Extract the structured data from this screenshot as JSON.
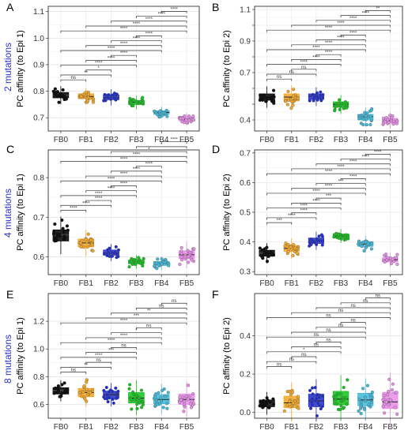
{
  "groups": [
    "FB0",
    "FB1",
    "FB2",
    "FB3",
    "FB4",
    "FB5"
  ],
  "colors": {
    "FB0": "#000000",
    "FB1": "#f5a623",
    "FB2": "#1f2bcc",
    "FB3": "#12c21a",
    "FB4": "#3fb8d8",
    "FB5": "#e88ce8",
    "row_label": "#2a36c8"
  },
  "row_labels": [
    "2 mutations",
    "4 mutations",
    "8 mutations"
  ],
  "chart_data": [
    {
      "type": "box",
      "panel_letter": "A",
      "ylabel": "PC affinity (to Epi 1)",
      "ylim": [
        0.65,
        1.12
      ],
      "yticks": [
        0.7,
        0.8,
        0.9,
        1.0,
        1.1
      ],
      "yticklabels": [
        "0.7",
        "0.8",
        "0.9",
        "1.0",
        "1.1"
      ],
      "categories": [
        "FB0",
        "FB1",
        "FB2",
        "FB3",
        "FB4",
        "FB5"
      ],
      "boxes": [
        {
          "group": "FB0",
          "q1": 0.775,
          "median": 0.785,
          "q3": 0.795
        },
        {
          "group": "FB1",
          "q1": 0.772,
          "median": 0.78,
          "q3": 0.79
        },
        {
          "group": "FB2",
          "q1": 0.768,
          "median": 0.776,
          "q3": 0.786
        },
        {
          "group": "FB3",
          "q1": 0.75,
          "median": 0.758,
          "q3": 0.765
        },
        {
          "group": "FB4",
          "q1": 0.713,
          "median": 0.72,
          "q3": 0.726
        },
        {
          "group": "FB5",
          "q1": 0.688,
          "median": 0.695,
          "q3": 0.702
        }
      ],
      "comparisons": [
        {
          "pair": [
            "FB0",
            "FB1"
          ],
          "label": "ns"
        },
        {
          "pair": [
            "FB0",
            "FB2"
          ],
          "label": "**"
        },
        {
          "pair": [
            "FB1",
            "FB2"
          ],
          "label": "*"
        },
        {
          "pair": [
            "FB0",
            "FB3"
          ],
          "label": "****"
        },
        {
          "pair": [
            "FB1",
            "FB3"
          ],
          "label": "****"
        },
        {
          "pair": [
            "FB2",
            "FB3"
          ],
          "label": "****"
        },
        {
          "pair": [
            "FB0",
            "FB4"
          ],
          "label": "****"
        },
        {
          "pair": [
            "FB1",
            "FB4"
          ],
          "label": "****"
        },
        {
          "pair": [
            "FB2",
            "FB4"
          ],
          "label": "****"
        },
        {
          "pair": [
            "FB3",
            "FB4"
          ],
          "label": "****"
        },
        {
          "pair": [
            "FB0",
            "FB5"
          ],
          "label": "****"
        },
        {
          "pair": [
            "FB1",
            "FB5"
          ],
          "label": "****"
        },
        {
          "pair": [
            "FB2",
            "FB5"
          ],
          "label": "****"
        },
        {
          "pair": [
            "FB3",
            "FB5"
          ],
          "label": "****"
        },
        {
          "pair": [
            "FB4",
            "FB5"
          ],
          "label": "****"
        }
      ]
    },
    {
      "type": "box",
      "panel_letter": "B",
      "ylabel": "PC affinity (to Epi 2)",
      "ylim": [
        0.33,
        1.12
      ],
      "yticks": [
        0.4,
        0.5,
        0.6,
        0.7,
        0.8,
        0.9,
        1.0,
        1.1
      ],
      "yticklabels": [
        "0.4",
        "",
        "",
        "0.7",
        "",
        "0.9",
        "",
        "1.1"
      ],
      "categories": [
        "FB0",
        "FB1",
        "FB2",
        "FB3",
        "FB4",
        "FB5"
      ],
      "boxes": [
        {
          "group": "FB0",
          "q1": 0.525,
          "median": 0.545,
          "q3": 0.565
        },
        {
          "group": "FB1",
          "q1": 0.52,
          "median": 0.545,
          "q3": 0.565
        },
        {
          "group": "FB2",
          "q1": 0.53,
          "median": 0.55,
          "q3": 0.565
        },
        {
          "group": "FB3",
          "q1": 0.48,
          "median": 0.5,
          "q3": 0.515
        },
        {
          "group": "FB4",
          "q1": 0.4,
          "median": 0.42,
          "q3": 0.435
        },
        {
          "group": "FB5",
          "q1": 0.38,
          "median": 0.395,
          "q3": 0.41
        }
      ],
      "comparisons": [
        {
          "pair": [
            "FB0",
            "FB1"
          ],
          "label": "ns"
        },
        {
          "pair": [
            "FB0",
            "FB2"
          ],
          "label": "ns"
        },
        {
          "pair": [
            "FB1",
            "FB2"
          ],
          "label": "ns"
        },
        {
          "pair": [
            "FB0",
            "FB3"
          ],
          "label": "****"
        },
        {
          "pair": [
            "FB1",
            "FB3"
          ],
          "label": "****"
        },
        {
          "pair": [
            "FB2",
            "FB3"
          ],
          "label": "****"
        },
        {
          "pair": [
            "FB0",
            "FB4"
          ],
          "label": "****"
        },
        {
          "pair": [
            "FB1",
            "FB4"
          ],
          "label": "****"
        },
        {
          "pair": [
            "FB2",
            "FB4"
          ],
          "label": "****"
        },
        {
          "pair": [
            "FB3",
            "FB4"
          ],
          "label": "****"
        },
        {
          "pair": [
            "FB0",
            "FB5"
          ],
          "label": "****"
        },
        {
          "pair": [
            "FB1",
            "FB5"
          ],
          "label": "****"
        },
        {
          "pair": [
            "FB2",
            "FB5"
          ],
          "label": "****"
        },
        {
          "pair": [
            "FB3",
            "FB5"
          ],
          "label": "****"
        },
        {
          "pair": [
            "FB4",
            "FB5"
          ],
          "label": "**"
        }
      ]
    },
    {
      "type": "box",
      "panel_letter": "C",
      "ylabel": "PC affinity (to Epi 1)",
      "ylim": [
        0.555,
        0.87
      ],
      "yticks": [
        0.6,
        0.7,
        0.8
      ],
      "yticklabels": [
        "0.6",
        "0.7",
        "0.8"
      ],
      "categories": [
        "FB0",
        "FB1",
        "FB2",
        "FB3",
        "FB4",
        "FB5"
      ],
      "boxes": [
        {
          "group": "FB0",
          "q1": 0.64,
          "median": 0.655,
          "q3": 0.668
        },
        {
          "group": "FB1",
          "q1": 0.625,
          "median": 0.635,
          "q3": 0.645
        },
        {
          "group": "FB2",
          "q1": 0.604,
          "median": 0.61,
          "q3": 0.617
        },
        {
          "group": "FB3",
          "q1": 0.582,
          "median": 0.587,
          "q3": 0.592
        },
        {
          "group": "FB4",
          "q1": 0.578,
          "median": 0.583,
          "q3": 0.588
        },
        {
          "group": "FB5",
          "q1": 0.595,
          "median": 0.605,
          "q3": 0.615
        }
      ],
      "comparisons": [
        {
          "pair": [
            "FB0",
            "FB1"
          ],
          "label": "****"
        },
        {
          "pair": [
            "FB0",
            "FB2"
          ],
          "label": "****"
        },
        {
          "pair": [
            "FB1",
            "FB2"
          ],
          "label": "****"
        },
        {
          "pair": [
            "FB0",
            "FB3"
          ],
          "label": "****"
        },
        {
          "pair": [
            "FB1",
            "FB3"
          ],
          "label": "****"
        },
        {
          "pair": [
            "FB2",
            "FB3"
          ],
          "label": "****"
        },
        {
          "pair": [
            "FB0",
            "FB4"
          ],
          "label": "****"
        },
        {
          "pair": [
            "FB1",
            "FB4"
          ],
          "label": "****"
        },
        {
          "pair": [
            "FB2",
            "FB4"
          ],
          "label": "****"
        },
        {
          "pair": [
            "FB3",
            "FB4"
          ],
          "label": "****"
        },
        {
          "pair": [
            "FB0",
            "FB5"
          ],
          "label": "****"
        },
        {
          "pair": [
            "FB1",
            "FB5"
          ],
          "label": "****"
        },
        {
          "pair": [
            "FB2",
            "FB5"
          ],
          "label": "*"
        },
        {
          "pair": [
            "FB3",
            "FB5"
          ],
          "label": "*"
        },
        {
          "pair": [
            "FB4",
            "FB5"
          ],
          "label": "****"
        }
      ]
    },
    {
      "type": "box",
      "panel_letter": "D",
      "ylabel": "PC affinity (to Epi 2)",
      "ylim": [
        0.29,
        0.71
      ],
      "yticks": [
        0.3,
        0.4,
        0.5,
        0.6,
        0.7
      ],
      "yticklabels": [
        "0.3",
        "0.4",
        "0.5",
        "0.6",
        "0.7"
      ],
      "categories": [
        "FB0",
        "FB1",
        "FB2",
        "FB3",
        "FB4",
        "FB5"
      ],
      "boxes": [
        {
          "group": "FB0",
          "q1": 0.352,
          "median": 0.362,
          "q3": 0.372
        },
        {
          "group": "FB1",
          "q1": 0.368,
          "median": 0.378,
          "q3": 0.388
        },
        {
          "group": "FB2",
          "q1": 0.395,
          "median": 0.404,
          "q3": 0.413
        },
        {
          "group": "FB3",
          "q1": 0.413,
          "median": 0.42,
          "q3": 0.427
        },
        {
          "group": "FB4",
          "q1": 0.385,
          "median": 0.393,
          "q3": 0.401
        },
        {
          "group": "FB5",
          "q1": 0.333,
          "median": 0.34,
          "q3": 0.347
        }
      ],
      "comparisons": [
        {
          "pair": [
            "FB0",
            "FB1"
          ],
          "label": "***"
        },
        {
          "pair": [
            "FB0",
            "FB2"
          ],
          "label": "****"
        },
        {
          "pair": [
            "FB1",
            "FB2"
          ],
          "label": "****"
        },
        {
          "pair": [
            "FB0",
            "FB3"
          ],
          "label": "****"
        },
        {
          "pair": [
            "FB1",
            "FB3"
          ],
          "label": "****"
        },
        {
          "pair": [
            "FB2",
            "FB3"
          ],
          "label": "***"
        },
        {
          "pair": [
            "FB0",
            "FB4"
          ],
          "label": "****"
        },
        {
          "pair": [
            "FB1",
            "FB4"
          ],
          "label": "****"
        },
        {
          "pair": [
            "FB2",
            "FB4"
          ],
          "label": "***"
        },
        {
          "pair": [
            "FB3",
            "FB4"
          ],
          "label": "****"
        },
        {
          "pair": [
            "FB0",
            "FB5"
          ],
          "label": "****"
        },
        {
          "pair": [
            "FB1",
            "FB5"
          ],
          "label": "****"
        },
        {
          "pair": [
            "FB2",
            "FB5"
          ],
          "label": "****"
        },
        {
          "pair": [
            "FB3",
            "FB5"
          ],
          "label": "****"
        },
        {
          "pair": [
            "FB4",
            "FB5"
          ],
          "label": "****"
        }
      ]
    },
    {
      "type": "box",
      "panel_letter": "E",
      "ylabel": "PC affinity (to Epi 1)",
      "ylim": [
        0.5,
        1.4
      ],
      "yticks": [
        0.6,
        0.8,
        1.0,
        1.2
      ],
      "yticklabels": [
        "0.6",
        "0.8",
        "1.0",
        "1.2"
      ],
      "categories": [
        "FB0",
        "FB1",
        "FB2",
        "FB3",
        "FB4",
        "FB5"
      ],
      "boxes": [
        {
          "group": "FB0",
          "q1": 0.675,
          "median": 0.7,
          "q3": 0.72
        },
        {
          "group": "FB1",
          "q1": 0.655,
          "median": 0.685,
          "q3": 0.715
        },
        {
          "group": "FB2",
          "q1": 0.645,
          "median": 0.67,
          "q3": 0.695
        },
        {
          "group": "FB3",
          "q1": 0.61,
          "median": 0.645,
          "q3": 0.685
        },
        {
          "group": "FB4",
          "q1": 0.605,
          "median": 0.635,
          "q3": 0.67
        },
        {
          "group": "FB5",
          "q1": 0.6,
          "median": 0.635,
          "q3": 0.675
        }
      ],
      "comparisons": [
        {
          "pair": [
            "FB0",
            "FB1"
          ],
          "label": "ns"
        },
        {
          "pair": [
            "FB0",
            "FB2"
          ],
          "label": "**"
        },
        {
          "pair": [
            "FB1",
            "FB2"
          ],
          "label": "ns"
        },
        {
          "pair": [
            "FB0",
            "FB3"
          ],
          "label": "****"
        },
        {
          "pair": [
            "FB1",
            "FB3"
          ],
          "label": "***"
        },
        {
          "pair": [
            "FB2",
            "FB3"
          ],
          "label": "ns"
        },
        {
          "pair": [
            "FB0",
            "FB4"
          ],
          "label": "****"
        },
        {
          "pair": [
            "FB1",
            "FB4"
          ],
          "label": "****"
        },
        {
          "pair": [
            "FB2",
            "FB4"
          ],
          "label": "*"
        },
        {
          "pair": [
            "FB3",
            "FB4"
          ],
          "label": "ns"
        },
        {
          "pair": [
            "FB0",
            "FB5"
          ],
          "label": "****"
        },
        {
          "pair": [
            "FB1",
            "FB5"
          ],
          "label": "***"
        },
        {
          "pair": [
            "FB2",
            "FB5"
          ],
          "label": "**"
        },
        {
          "pair": [
            "FB3",
            "FB5"
          ],
          "label": "ns"
        },
        {
          "pair": [
            "FB4",
            "FB5"
          ],
          "label": "ns"
        }
      ]
    },
    {
      "type": "box",
      "panel_letter": "F",
      "ylabel": "PC affinity (to Epi 2)",
      "ylim": [
        -0.03,
        0.62
      ],
      "yticks": [
        0.0,
        0.2,
        0.4
      ],
      "yticklabels": [
        "0.0",
        "0.2",
        "0.4"
      ],
      "categories": [
        "FB0",
        "FB1",
        "FB2",
        "FB3",
        "FB4",
        "FB5"
      ],
      "boxes": [
        {
          "group": "FB0",
          "q1": 0.03,
          "median": 0.045,
          "q3": 0.065
        },
        {
          "group": "FB1",
          "q1": 0.025,
          "median": 0.05,
          "q3": 0.085
        },
        {
          "group": "FB2",
          "q1": 0.03,
          "median": 0.06,
          "q3": 0.095
        },
        {
          "group": "FB3",
          "q1": 0.04,
          "median": 0.07,
          "q3": 0.11
        },
        {
          "group": "FB4",
          "q1": 0.035,
          "median": 0.065,
          "q3": 0.1
        },
        {
          "group": "FB5",
          "q1": 0.02,
          "median": 0.055,
          "q3": 0.105
        }
      ],
      "comparisons": [
        {
          "pair": [
            "FB0",
            "FB1"
          ],
          "label": "ns"
        },
        {
          "pair": [
            "FB0",
            "FB2"
          ],
          "label": "ns"
        },
        {
          "pair": [
            "FB1",
            "FB2"
          ],
          "label": "ns"
        },
        {
          "pair": [
            "FB0",
            "FB3"
          ],
          "label": "*"
        },
        {
          "pair": [
            "FB1",
            "FB3"
          ],
          "label": "ns"
        },
        {
          "pair": [
            "FB2",
            "FB3"
          ],
          "label": "ns"
        },
        {
          "pair": [
            "FB0",
            "FB4"
          ],
          "label": "ns"
        },
        {
          "pair": [
            "FB1",
            "FB4"
          ],
          "label": "ns"
        },
        {
          "pair": [
            "FB2",
            "FB4"
          ],
          "label": "ns"
        },
        {
          "pair": [
            "FB3",
            "FB4"
          ],
          "label": "ns"
        },
        {
          "pair": [
            "FB0",
            "FB5"
          ],
          "label": "ns"
        },
        {
          "pair": [
            "FB1",
            "FB5"
          ],
          "label": "ns"
        },
        {
          "pair": [
            "FB2",
            "FB5"
          ],
          "label": "ns"
        },
        {
          "pair": [
            "FB3",
            "FB5"
          ],
          "label": "ns"
        },
        {
          "pair": [
            "FB4",
            "FB5"
          ],
          "label": "ns"
        }
      ]
    }
  ]
}
